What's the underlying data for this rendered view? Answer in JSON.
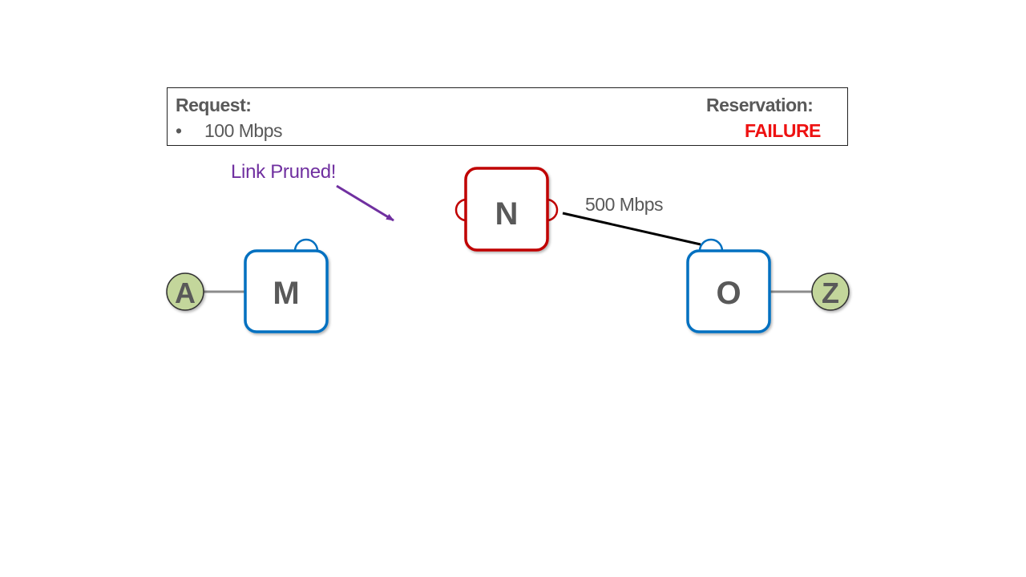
{
  "request": {
    "title": "Request:",
    "bullet": "•",
    "item": "100 Mbps"
  },
  "reservation": {
    "title": "Reservation:",
    "status": "FAILURE",
    "status_color": "#ee1111"
  },
  "annotation": {
    "text": "Link Pruned!",
    "color": "#7030a0"
  },
  "links": {
    "n_o_bandwidth": "500 Mbps"
  },
  "nodes": {
    "a": "A",
    "m": "M",
    "n": "N",
    "o": "O",
    "z": "Z"
  },
  "colors": {
    "router_border": "#0070c0",
    "failed_router_border": "#c00000",
    "endpoint_fill": "#c3d69b",
    "text": "#595959"
  }
}
